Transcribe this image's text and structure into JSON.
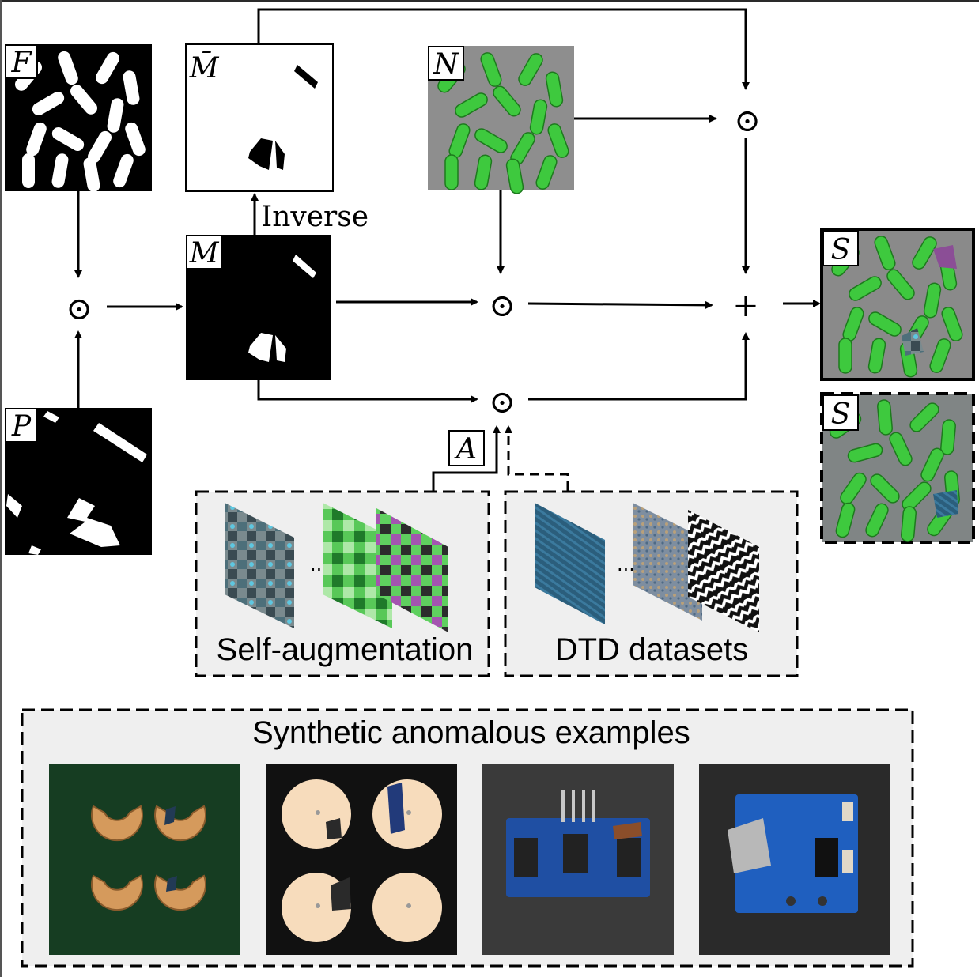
{
  "labels": {
    "F": "F",
    "P": "P",
    "M": "M",
    "M_bar": "M̄",
    "N": "N",
    "S1": "S",
    "S2": "S",
    "A": "A"
  },
  "operators": {
    "hadamard": "⊙",
    "plus": "+"
  },
  "captions": {
    "inverse": "Inverse",
    "self_augmentation": "Self-augmentation",
    "dtd": "DTD datasets",
    "ellipsis": "...",
    "synthetic": "Synthetic anomalous examples"
  },
  "colors": {
    "panel_bg": "#eeeeee",
    "pill_green": "#3ec93e",
    "mask_black": "#000000",
    "mask_white": "#ffffff",
    "gray_bg": "#8f8f8f",
    "pcb_blue": "#1f4fa3",
    "green_bg": "#163d22"
  },
  "examples": [
    {
      "name": "macaroni"
    },
    {
      "name": "candle"
    },
    {
      "name": "pcb-sensor"
    },
    {
      "name": "pcb-charger"
    }
  ]
}
